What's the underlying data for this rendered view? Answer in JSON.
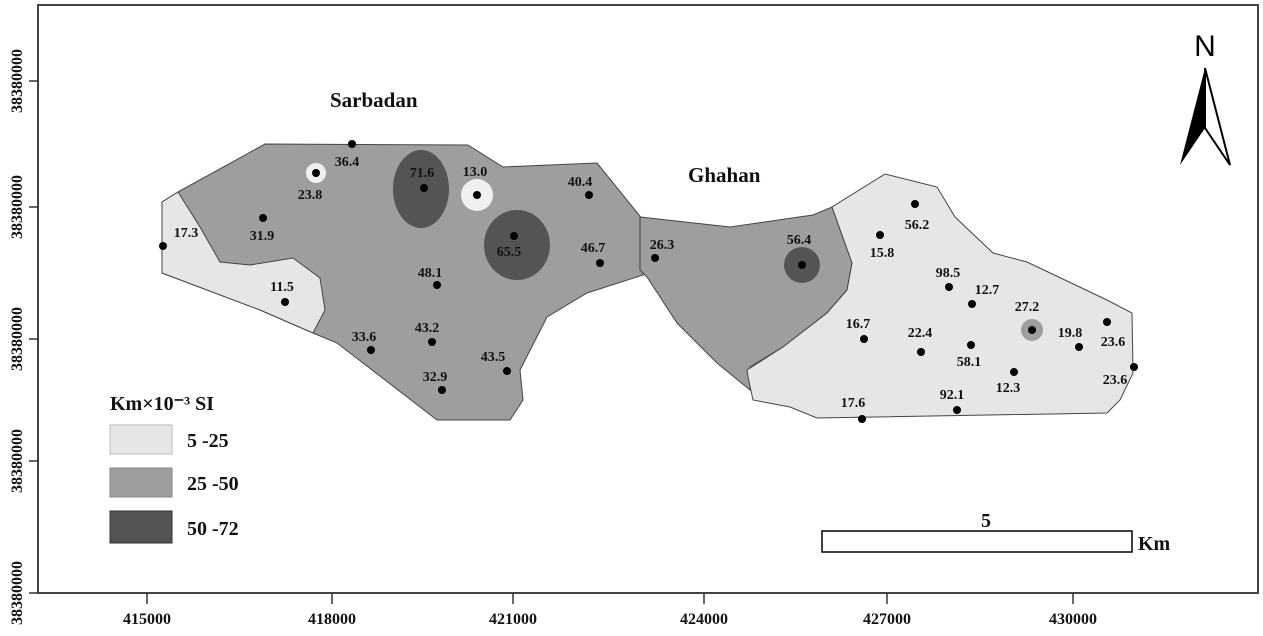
{
  "map": {
    "places": [
      "Sarbadan",
      "Ghahan"
    ],
    "north_label": "N",
    "x_ticks": [
      "415000",
      "418000",
      "421000",
      "424000",
      "427000",
      "430000"
    ],
    "y_ticks": [
      "38380000",
      "38380000",
      "38380000",
      "38380000",
      "38380000"
    ],
    "scale_bar": {
      "value": "5",
      "unit": "Km"
    },
    "legend": {
      "title": "Km×10⁻³ SI",
      "classes": [
        {
          "label": "5 -25",
          "color": "#e6e6e6"
        },
        {
          "label": "25 -50",
          "color": "#9e9e9e"
        },
        {
          "label": "50 -72",
          "color": "#545454"
        }
      ]
    },
    "samples": [
      "36.4",
      "23.8",
      "31.9",
      "17.3",
      "11.5",
      "71.6",
      "13.0",
      "65.5",
      "40.4",
      "46.7",
      "48.1",
      "43.2",
      "33.6",
      "43.5",
      "32.9",
      "26.3",
      "56.4",
      "56.2",
      "15.8",
      "98.5",
      "12.7",
      "27.2",
      "16.7",
      "22.4",
      "58.1",
      "19.8",
      "23.6",
      "23.6",
      "12.3",
      "92.1",
      "17.6"
    ]
  }
}
